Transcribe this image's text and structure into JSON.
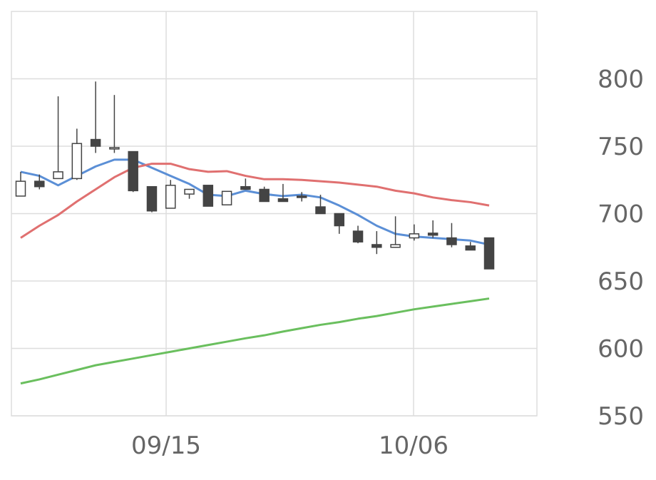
{
  "chart_data": {
    "type": "candlestick",
    "title": "",
    "xlabel": "",
    "ylabel": "",
    "ylim": [
      550,
      850
    ],
    "y_ticks": [
      550,
      600,
      650,
      700,
      750,
      800
    ],
    "x_tick_labels": [
      "09/15",
      "10/06"
    ],
    "y_axis_side": "right",
    "grid": true,
    "candles": [
      {
        "open": 713,
        "high": 731,
        "low": 713,
        "close": 724
      },
      {
        "open": 724,
        "high": 729,
        "low": 718,
        "close": 720
      },
      {
        "open": 726,
        "high": 787,
        "low": 726,
        "close": 731
      },
      {
        "open": 726,
        "high": 763,
        "low": 725,
        "close": 752
      },
      {
        "open": 755,
        "high": 798,
        "low": 745,
        "close": 750
      },
      {
        "open": 748,
        "high": 788,
        "low": 745,
        "close": 749
      },
      {
        "open": 746,
        "high": 746,
        "low": 716,
        "close": 717
      },
      {
        "open": 720,
        "high": 720,
        "low": 701,
        "close": 702
      },
      {
        "open": 704,
        "high": 725,
        "low": 704,
        "close": 721
      },
      {
        "open": 714.5,
        "high": 718,
        "low": 711,
        "close": 718
      },
      {
        "open": 721,
        "high": 721,
        "low": 705.5,
        "close": 705.5
      },
      {
        "open": 706.5,
        "high": 716.5,
        "low": 706.5,
        "close": 716.5
      },
      {
        "open": 720,
        "high": 726,
        "low": 718,
        "close": 718
      },
      {
        "open": 718,
        "high": 720,
        "low": 709,
        "close": 709
      },
      {
        "open": 711,
        "high": 722,
        "low": 709,
        "close": 709
      },
      {
        "open": 713,
        "high": 716,
        "low": 709,
        "close": 712
      },
      {
        "open": 705,
        "high": 714,
        "low": 700,
        "close": 700
      },
      {
        "open": 700,
        "high": 700,
        "low": 685,
        "close": 691
      },
      {
        "open": 687,
        "high": 691,
        "low": 678,
        "close": 679
      },
      {
        "open": 677,
        "high": 687,
        "low": 670,
        "close": 675
      },
      {
        "open": 675,
        "high": 698,
        "low": 675,
        "close": 677
      },
      {
        "open": 682,
        "high": 692,
        "low": 680,
        "close": 685
      },
      {
        "open": 685.5,
        "high": 695,
        "low": 682,
        "close": 684
      },
      {
        "open": 682,
        "high": 693,
        "low": 675,
        "close": 677
      },
      {
        "open": 676,
        "high": 679,
        "low": 673,
        "close": 673
      },
      {
        "open": 682,
        "high": 682,
        "low": 659,
        "close": 659
      }
    ],
    "series": [
      {
        "color": "#5b8fd6",
        "values": [
          731,
          728,
          721,
          728,
          735,
          740,
          740,
          734,
          728,
          722,
          714,
          713,
          717,
          714.5,
          713,
          714,
          712,
          706,
          699,
          691,
          685,
          683,
          682,
          681,
          680,
          677
        ]
      },
      {
        "color": "#e07070",
        "values": [
          682,
          691,
          699,
          709,
          718,
          727,
          734,
          737,
          737,
          733,
          731,
          731.5,
          728,
          725.5,
          725.5,
          725,
          724,
          723,
          721.5,
          720,
          717,
          715,
          712,
          710,
          708.5,
          706
        ]
      },
      {
        "color": "#6abf5e",
        "values": [
          574,
          577,
          580.5,
          584,
          587.5,
          590,
          592.5,
          595,
          597.5,
          600,
          602.5,
          605,
          607.5,
          609.7,
          612.5,
          615,
          617.5,
          619.5,
          622,
          624,
          626.5,
          629,
          631,
          633,
          635,
          637
        ]
      }
    ],
    "colors": {
      "down": "#444444",
      "up": "#ffffff",
      "wick": "#444444",
      "grid": "#dddddd"
    }
  }
}
